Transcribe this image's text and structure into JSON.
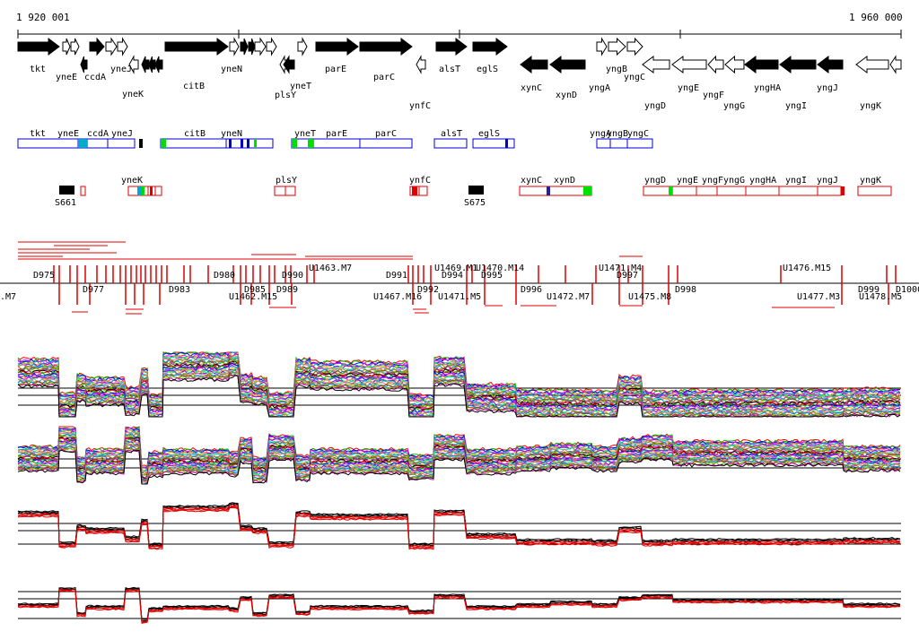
{
  "coordinate_axis": {
    "start_label": "1 920 001",
    "end_label": "1 960 000"
  },
  "genes_top_labels": [
    {
      "label": "tkt"
    },
    {
      "label": "yneE"
    },
    {
      "label": "ccdA"
    },
    {
      "label": "yneJ"
    },
    {
      "label": "yneK"
    },
    {
      "label": "citB"
    },
    {
      "label": "yneN"
    },
    {
      "label": "plsY"
    },
    {
      "label": "yneT"
    },
    {
      "label": "parE"
    },
    {
      "label": "parC"
    },
    {
      "label": "ynfC"
    },
    {
      "label": "alsT"
    },
    {
      "label": "eglS"
    },
    {
      "label": "xynC"
    },
    {
      "label": "xynD"
    },
    {
      "label": "yngA"
    },
    {
      "label": "yngB"
    },
    {
      "label": "yngC"
    },
    {
      "label": "yngD"
    },
    {
      "label": "yngE"
    },
    {
      "label": "yngF"
    },
    {
      "label": "yngG"
    },
    {
      "label": "yngHA"
    },
    {
      "label": "yngI"
    },
    {
      "label": "yngJ"
    },
    {
      "label": "yngK"
    }
  ],
  "transcripts_plus": [
    {
      "label": "tkt"
    },
    {
      "label": "yneE"
    },
    {
      "label": "ccdA"
    },
    {
      "label": "yneJ"
    },
    {
      "label": "citB"
    },
    {
      "label": "yneN"
    },
    {
      "label": "yneT"
    },
    {
      "label": "parE"
    },
    {
      "label": "parC"
    },
    {
      "label": "alsT"
    },
    {
      "label": "eglS"
    },
    {
      "label": "yngA"
    },
    {
      "label": "yngB"
    },
    {
      "label": "yngC"
    }
  ],
  "transcripts_minus": [
    {
      "label": "yneK"
    },
    {
      "label": "plsY"
    },
    {
      "label": "ynfC"
    },
    {
      "label": "xynC"
    },
    {
      "label": "xynD"
    },
    {
      "label": "yngD"
    },
    {
      "label": "yngE"
    },
    {
      "label": "yngF"
    },
    {
      "label": "yngG"
    },
    {
      "label": "yngHA"
    },
    {
      "label": "yngI"
    },
    {
      "label": "yngJ"
    },
    {
      "label": "yngK"
    }
  ],
  "s_markers": [
    {
      "label": "S661"
    },
    {
      "label": "S675"
    }
  ],
  "segment_labels_upper": [
    {
      "label": "D975"
    },
    {
      "label": "U1469.M1"
    },
    {
      "label": "U1470.M14"
    },
    {
      "label": "U1471.M4"
    },
    {
      "label": "U1476.M15"
    },
    {
      "label": "U1463.M7"
    },
    {
      "label": "D980"
    },
    {
      "label": "D990"
    },
    {
      "label": "D991"
    },
    {
      "label": "D994"
    },
    {
      "label": "D995"
    },
    {
      "label": "D997"
    }
  ],
  "segment_labels_lower": [
    {
      "label": ".M7"
    },
    {
      "label": "U1462.M15"
    },
    {
      "label": "D977"
    },
    {
      "label": "D983"
    },
    {
      "label": "D985"
    },
    {
      "label": "D989"
    },
    {
      "label": "U1467.M16"
    },
    {
      "label": "D992"
    },
    {
      "label": "U1471.M5"
    },
    {
      "label": "D996"
    },
    {
      "label": "U1472.M7"
    },
    {
      "label": "U1475.M8"
    },
    {
      "label": "D998"
    },
    {
      "label": "U1477.M3"
    },
    {
      "label": "D999"
    },
    {
      "label": "U1478.M5"
    },
    {
      "label": "D1000"
    }
  ],
  "colors": {
    "black": "#000000",
    "transcript_blue": "#0000cc",
    "transcript_red": "#e00000",
    "marker_green": "#00dd00",
    "marker_cyan": "#00aacc",
    "profile_red": "#e00000"
  }
}
